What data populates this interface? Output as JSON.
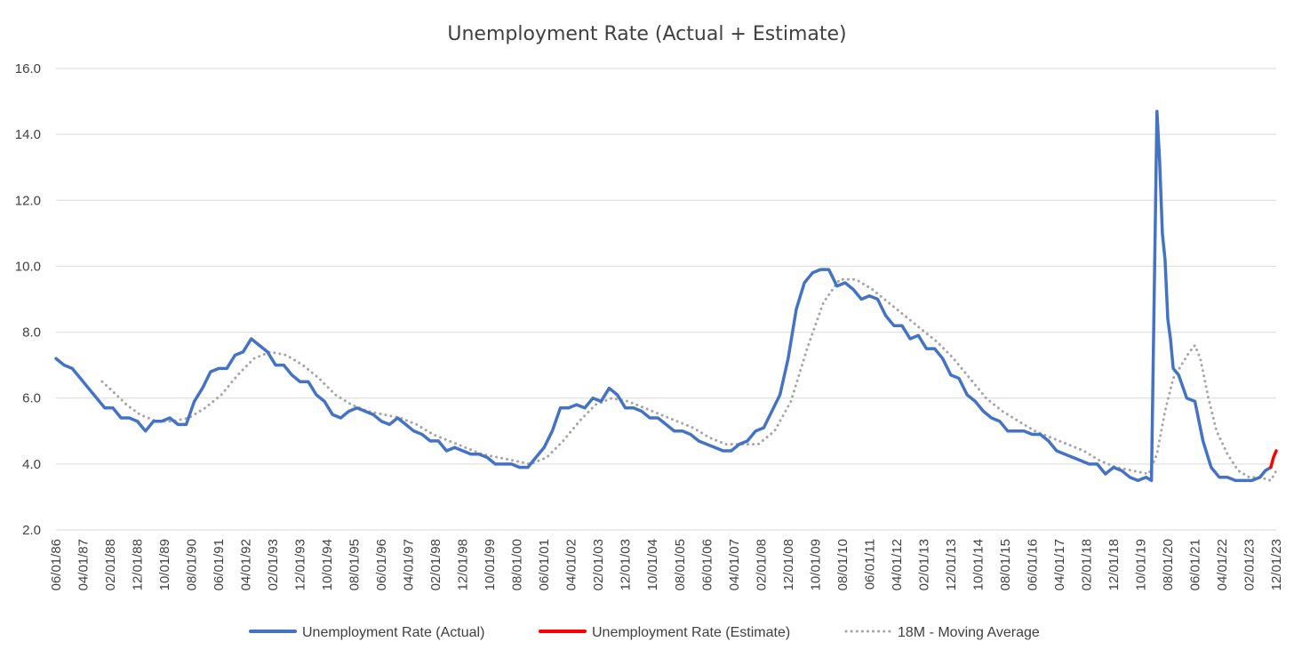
{
  "chart_data": {
    "type": "line",
    "title": "Unemployment Rate (Actual + Estimate)",
    "ylim": [
      2.0,
      16.0
    ],
    "yticks": [
      "2.0",
      "4.0",
      "6.0",
      "8.0",
      "10.0",
      "12.0",
      "14.0",
      "16.0"
    ],
    "xlim": [
      "1986-06",
      "2023-12"
    ],
    "xticks": [
      "06/01/86",
      "04/01/87",
      "02/01/88",
      "12/01/88",
      "10/01/89",
      "08/01/90",
      "06/01/91",
      "04/01/92",
      "02/01/93",
      "12/01/93",
      "10/01/94",
      "08/01/95",
      "06/01/96",
      "04/01/97",
      "02/01/98",
      "12/01/98",
      "10/01/99",
      "08/01/00",
      "06/01/01",
      "04/01/02",
      "02/01/03",
      "12/01/03",
      "10/01/04",
      "08/01/05",
      "06/01/06",
      "04/01/07",
      "02/01/08",
      "12/01/08",
      "10/01/09",
      "08/01/10",
      "06/01/11",
      "04/01/12",
      "02/01/13",
      "12/01/13",
      "10/01/14",
      "08/01/15",
      "06/01/16",
      "04/01/17",
      "02/01/18",
      "12/01/18",
      "10/01/19",
      "08/01/20",
      "06/01/21",
      "04/01/22",
      "02/01/23",
      "12/01/23"
    ],
    "grid": true,
    "legend": "bottom",
    "series": [
      {
        "name": "Unemployment Rate (Actual)",
        "color": "#4472c4",
        "style": "solid",
        "points": [
          [
            "1986-06",
            7.2
          ],
          [
            "1986-09",
            7.0
          ],
          [
            "1986-12",
            6.9
          ],
          [
            "1987-03",
            6.6
          ],
          [
            "1987-06",
            6.3
          ],
          [
            "1987-09",
            6.0
          ],
          [
            "1987-12",
            5.7
          ],
          [
            "1988-03",
            5.7
          ],
          [
            "1988-06",
            5.4
          ],
          [
            "1988-09",
            5.4
          ],
          [
            "1988-12",
            5.3
          ],
          [
            "1989-03",
            5.0
          ],
          [
            "1989-06",
            5.3
          ],
          [
            "1989-09",
            5.3
          ],
          [
            "1989-12",
            5.4
          ],
          [
            "1990-03",
            5.2
          ],
          [
            "1990-06",
            5.2
          ],
          [
            "1990-09",
            5.9
          ],
          [
            "1990-12",
            6.3
          ],
          [
            "1991-03",
            6.8
          ],
          [
            "1991-06",
            6.9
          ],
          [
            "1991-09",
            6.9
          ],
          [
            "1991-12",
            7.3
          ],
          [
            "1992-03",
            7.4
          ],
          [
            "1992-06",
            7.8
          ],
          [
            "1992-09",
            7.6
          ],
          [
            "1992-12",
            7.4
          ],
          [
            "1993-03",
            7.0
          ],
          [
            "1993-06",
            7.0
          ],
          [
            "1993-09",
            6.7
          ],
          [
            "1993-12",
            6.5
          ],
          [
            "1994-03",
            6.5
          ],
          [
            "1994-06",
            6.1
          ],
          [
            "1994-09",
            5.9
          ],
          [
            "1994-12",
            5.5
          ],
          [
            "1995-03",
            5.4
          ],
          [
            "1995-06",
            5.6
          ],
          [
            "1995-09",
            5.7
          ],
          [
            "1995-12",
            5.6
          ],
          [
            "1996-03",
            5.5
          ],
          [
            "1996-06",
            5.3
          ],
          [
            "1996-09",
            5.2
          ],
          [
            "1996-12",
            5.4
          ],
          [
            "1997-03",
            5.2
          ],
          [
            "1997-06",
            5.0
          ],
          [
            "1997-09",
            4.9
          ],
          [
            "1997-12",
            4.7
          ],
          [
            "1998-03",
            4.7
          ],
          [
            "1998-06",
            4.4
          ],
          [
            "1998-09",
            4.5
          ],
          [
            "1998-12",
            4.4
          ],
          [
            "1999-03",
            4.3
          ],
          [
            "1999-06",
            4.3
          ],
          [
            "1999-09",
            4.2
          ],
          [
            "1999-12",
            4.0
          ],
          [
            "2000-03",
            4.0
          ],
          [
            "2000-06",
            4.0
          ],
          [
            "2000-09",
            3.9
          ],
          [
            "2000-12",
            3.9
          ],
          [
            "2001-03",
            4.2
          ],
          [
            "2001-06",
            4.5
          ],
          [
            "2001-09",
            5.0
          ],
          [
            "2001-12",
            5.7
          ],
          [
            "2002-03",
            5.7
          ],
          [
            "2002-06",
            5.8
          ],
          [
            "2002-09",
            5.7
          ],
          [
            "2002-12",
            6.0
          ],
          [
            "2003-03",
            5.9
          ],
          [
            "2003-06",
            6.3
          ],
          [
            "2003-09",
            6.1
          ],
          [
            "2003-12",
            5.7
          ],
          [
            "2004-03",
            5.7
          ],
          [
            "2004-06",
            5.6
          ],
          [
            "2004-09",
            5.4
          ],
          [
            "2004-12",
            5.4
          ],
          [
            "2005-03",
            5.2
          ],
          [
            "2005-06",
            5.0
          ],
          [
            "2005-09",
            5.0
          ],
          [
            "2005-12",
            4.9
          ],
          [
            "2006-03",
            4.7
          ],
          [
            "2006-06",
            4.6
          ],
          [
            "2006-09",
            4.5
          ],
          [
            "2006-12",
            4.4
          ],
          [
            "2007-03",
            4.4
          ],
          [
            "2007-06",
            4.6
          ],
          [
            "2007-09",
            4.7
          ],
          [
            "2007-12",
            5.0
          ],
          [
            "2008-03",
            5.1
          ],
          [
            "2008-06",
            5.6
          ],
          [
            "2008-09",
            6.1
          ],
          [
            "2008-12",
            7.2
          ],
          [
            "2009-03",
            8.7
          ],
          [
            "2009-06",
            9.5
          ],
          [
            "2009-09",
            9.8
          ],
          [
            "2009-12",
            9.9
          ],
          [
            "2010-03",
            9.9
          ],
          [
            "2010-06",
            9.4
          ],
          [
            "2010-09",
            9.5
          ],
          [
            "2010-12",
            9.3
          ],
          [
            "2011-03",
            9.0
          ],
          [
            "2011-06",
            9.1
          ],
          [
            "2011-09",
            9.0
          ],
          [
            "2011-12",
            8.5
          ],
          [
            "2012-03",
            8.2
          ],
          [
            "2012-06",
            8.2
          ],
          [
            "2012-09",
            7.8
          ],
          [
            "2012-12",
            7.9
          ],
          [
            "2013-03",
            7.5
          ],
          [
            "2013-06",
            7.5
          ],
          [
            "2013-09",
            7.2
          ],
          [
            "2013-12",
            6.7
          ],
          [
            "2014-03",
            6.6
          ],
          [
            "2014-06",
            6.1
          ],
          [
            "2014-09",
            5.9
          ],
          [
            "2014-12",
            5.6
          ],
          [
            "2015-03",
            5.4
          ],
          [
            "2015-06",
            5.3
          ],
          [
            "2015-09",
            5.0
          ],
          [
            "2015-12",
            5.0
          ],
          [
            "2016-03",
            5.0
          ],
          [
            "2016-06",
            4.9
          ],
          [
            "2016-09",
            4.9
          ],
          [
            "2016-12",
            4.7
          ],
          [
            "2017-03",
            4.4
          ],
          [
            "2017-06",
            4.3
          ],
          [
            "2017-09",
            4.2
          ],
          [
            "2017-12",
            4.1
          ],
          [
            "2018-03",
            4.0
          ],
          [
            "2018-06",
            4.0
          ],
          [
            "2018-09",
            3.7
          ],
          [
            "2018-12",
            3.9
          ],
          [
            "2019-03",
            3.8
          ],
          [
            "2019-06",
            3.6
          ],
          [
            "2019-09",
            3.5
          ],
          [
            "2019-12",
            3.6
          ],
          [
            "2020-02",
            3.5
          ],
          [
            "2020-04",
            14.7
          ],
          [
            "2020-05",
            13.2
          ],
          [
            "2020-06",
            11.0
          ],
          [
            "2020-07",
            10.2
          ],
          [
            "2020-08",
            8.4
          ],
          [
            "2020-09",
            7.8
          ],
          [
            "2020-10",
            6.9
          ],
          [
            "2020-12",
            6.7
          ],
          [
            "2021-03",
            6.0
          ],
          [
            "2021-06",
            5.9
          ],
          [
            "2021-09",
            4.7
          ],
          [
            "2021-12",
            3.9
          ],
          [
            "2022-03",
            3.6
          ],
          [
            "2022-06",
            3.6
          ],
          [
            "2022-09",
            3.5
          ],
          [
            "2022-12",
            3.5
          ],
          [
            "2023-03",
            3.5
          ],
          [
            "2023-06",
            3.6
          ],
          [
            "2023-08",
            3.8
          ],
          [
            "2023-10",
            3.9
          ]
        ]
      },
      {
        "name": "Unemployment Rate (Estimate)",
        "color": "#ff0000",
        "style": "solid",
        "points": [
          [
            "2023-10",
            3.9
          ],
          [
            "2023-11",
            4.2
          ],
          [
            "2023-12",
            4.4
          ]
        ]
      },
      {
        "name": "18M - Moving Average",
        "color": "#a6a6a6",
        "style": "dotted",
        "points": [
          [
            "1987-11",
            6.5
          ],
          [
            "1988-03",
            6.2
          ],
          [
            "1988-08",
            5.8
          ],
          [
            "1989-01",
            5.5
          ],
          [
            "1989-07",
            5.3
          ],
          [
            "1990-01",
            5.3
          ],
          [
            "1990-07",
            5.4
          ],
          [
            "1991-01",
            5.7
          ],
          [
            "1991-07",
            6.1
          ],
          [
            "1992-01",
            6.7
          ],
          [
            "1992-07",
            7.2
          ],
          [
            "1993-01",
            7.4
          ],
          [
            "1993-07",
            7.3
          ],
          [
            "1994-01",
            7.0
          ],
          [
            "1994-07",
            6.6
          ],
          [
            "1995-01",
            6.1
          ],
          [
            "1995-07",
            5.8
          ],
          [
            "1996-01",
            5.6
          ],
          [
            "1996-07",
            5.5
          ],
          [
            "1997-01",
            5.4
          ],
          [
            "1997-07",
            5.2
          ],
          [
            "1998-01",
            4.9
          ],
          [
            "1998-07",
            4.7
          ],
          [
            "1999-01",
            4.5
          ],
          [
            "1999-07",
            4.3
          ],
          [
            "2000-01",
            4.2
          ],
          [
            "2000-07",
            4.1
          ],
          [
            "2001-01",
            4.0
          ],
          [
            "2001-07",
            4.2
          ],
          [
            "2002-01",
            4.7
          ],
          [
            "2002-07",
            5.3
          ],
          [
            "2003-01",
            5.8
          ],
          [
            "2003-07",
            6.0
          ],
          [
            "2004-01",
            5.9
          ],
          [
            "2004-07",
            5.7
          ],
          [
            "2005-01",
            5.5
          ],
          [
            "2005-07",
            5.3
          ],
          [
            "2006-01",
            5.1
          ],
          [
            "2006-07",
            4.8
          ],
          [
            "2007-01",
            4.6
          ],
          [
            "2007-07",
            4.6
          ],
          [
            "2008-01",
            4.6
          ],
          [
            "2008-07",
            5.0
          ],
          [
            "2009-01",
            5.9
          ],
          [
            "2009-07",
            7.5
          ],
          [
            "2010-01",
            8.9
          ],
          [
            "2010-07",
            9.6
          ],
          [
            "2011-01",
            9.6
          ],
          [
            "2011-07",
            9.3
          ],
          [
            "2012-01",
            8.9
          ],
          [
            "2012-07",
            8.5
          ],
          [
            "2013-01",
            8.1
          ],
          [
            "2013-07",
            7.7
          ],
          [
            "2014-01",
            7.2
          ],
          [
            "2014-07",
            6.6
          ],
          [
            "2015-01",
            6.0
          ],
          [
            "2015-07",
            5.6
          ],
          [
            "2016-01",
            5.3
          ],
          [
            "2016-07",
            5.0
          ],
          [
            "2017-01",
            4.8
          ],
          [
            "2017-07",
            4.6
          ],
          [
            "2018-01",
            4.4
          ],
          [
            "2018-07",
            4.1
          ],
          [
            "2019-01",
            3.9
          ],
          [
            "2019-07",
            3.8
          ],
          [
            "2020-01",
            3.7
          ],
          [
            "2020-04",
            4.3
          ],
          [
            "2020-07",
            5.6
          ],
          [
            "2020-10",
            6.6
          ],
          [
            "2021-01",
            7.0
          ],
          [
            "2021-04",
            7.4
          ],
          [
            "2021-06",
            7.6
          ],
          [
            "2021-08",
            7.2
          ],
          [
            "2021-11",
            6.0
          ],
          [
            "2022-02",
            5.0
          ],
          [
            "2022-06",
            4.3
          ],
          [
            "2022-10",
            3.8
          ],
          [
            "2023-02",
            3.6
          ],
          [
            "2023-06",
            3.6
          ],
          [
            "2023-10",
            3.5
          ],
          [
            "2023-12",
            3.8
          ]
        ]
      }
    ]
  }
}
